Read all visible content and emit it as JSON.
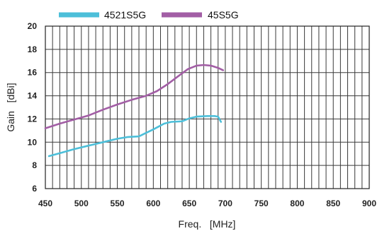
{
  "chart_data": {
    "type": "line",
    "xlabel": "Freq.   [MHz]",
    "ylabel": "Gain   [dBi]",
    "xlim": [
      450,
      900
    ],
    "ylim": [
      6,
      20
    ],
    "x_ticks": [
      450,
      500,
      550,
      600,
      650,
      700,
      750,
      800,
      850,
      900
    ],
    "y_ticks": [
      6,
      8,
      10,
      12,
      14,
      16,
      18,
      20
    ],
    "grid": true,
    "legend_position": "top-left",
    "series": [
      {
        "name": "4521S5G",
        "color": "#4dbfd9",
        "points": [
          [
            455,
            8.8
          ],
          [
            470,
            9.05
          ],
          [
            490,
            9.4
          ],
          [
            510,
            9.7
          ],
          [
            530,
            10.0
          ],
          [
            550,
            10.3
          ],
          [
            565,
            10.45
          ],
          [
            580,
            10.5
          ],
          [
            590,
            10.8
          ],
          [
            600,
            11.1
          ],
          [
            615,
            11.6
          ],
          [
            625,
            11.75
          ],
          [
            640,
            11.8
          ],
          [
            650,
            12.05
          ],
          [
            660,
            12.2
          ],
          [
            675,
            12.25
          ],
          [
            685,
            12.25
          ],
          [
            690,
            12.2
          ],
          [
            694,
            11.75
          ]
        ]
      },
      {
        "name": "45S5G",
        "color": "#a25ea5",
        "points": [
          [
            450,
            11.2
          ],
          [
            470,
            11.6
          ],
          [
            490,
            11.95
          ],
          [
            510,
            12.3
          ],
          [
            530,
            12.8
          ],
          [
            550,
            13.25
          ],
          [
            570,
            13.65
          ],
          [
            590,
            14.0
          ],
          [
            605,
            14.4
          ],
          [
            620,
            15.0
          ],
          [
            635,
            15.7
          ],
          [
            648,
            16.3
          ],
          [
            660,
            16.6
          ],
          [
            670,
            16.65
          ],
          [
            680,
            16.6
          ],
          [
            690,
            16.4
          ],
          [
            697,
            16.2
          ]
        ]
      }
    ]
  }
}
